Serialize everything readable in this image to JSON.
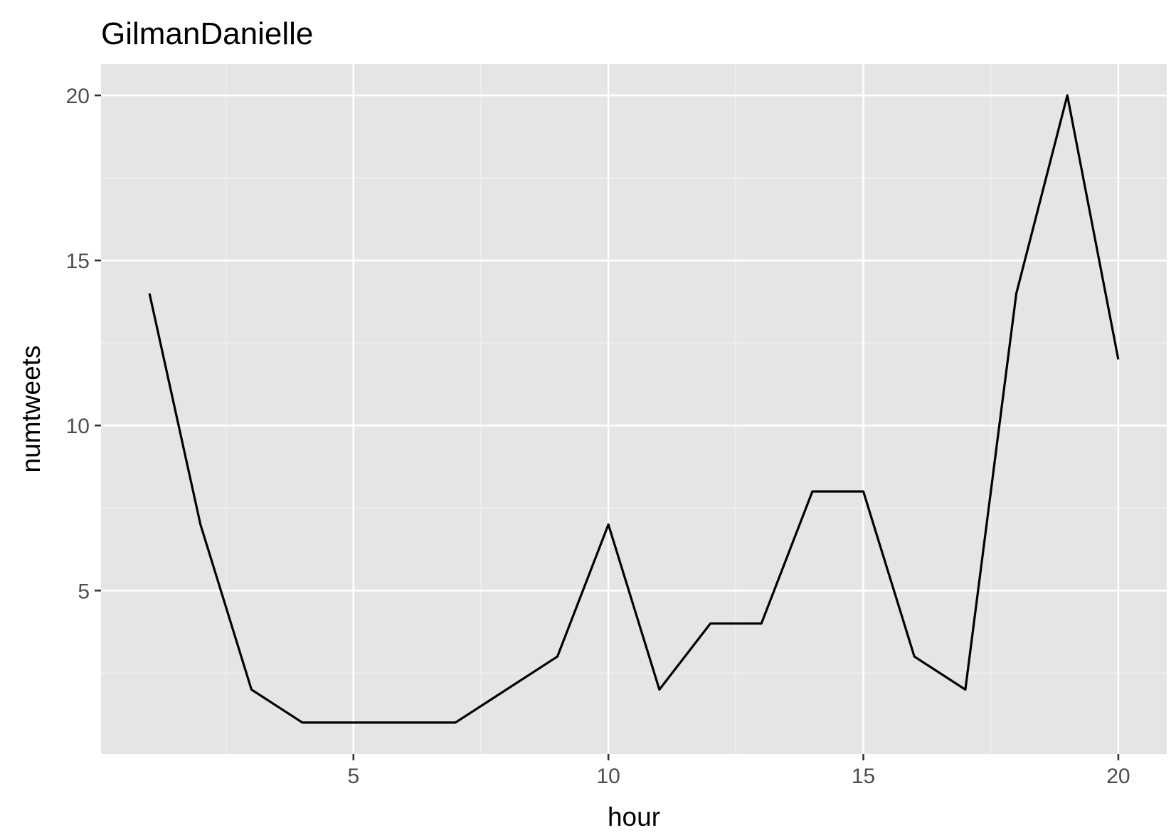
{
  "chart_data": {
    "type": "line",
    "title": "GilmanDanielle",
    "xlabel": "hour",
    "ylabel": "numtweets",
    "x": [
      1,
      2,
      3,
      4,
      5,
      6,
      7,
      8,
      9,
      10,
      11,
      12,
      13,
      14,
      15,
      16,
      17,
      18,
      19,
      20
    ],
    "series": [
      {
        "values": [
          14,
          7,
          2,
          1,
          1,
          1,
          1,
          2,
          3,
          7,
          2,
          4,
          4,
          8,
          8,
          3,
          2,
          14,
          20,
          12
        ]
      }
    ],
    "xlim": [
      0.05,
      20.95
    ],
    "ylim": [
      0.05,
      20.95
    ],
    "x_ticks": [
      5,
      10,
      15,
      20
    ],
    "x_tick_labels": [
      "5",
      "10",
      "15",
      "20"
    ],
    "y_ticks": [
      5,
      10,
      15,
      20
    ],
    "y_tick_labels": [
      "5",
      "10",
      "15",
      "20"
    ],
    "x_minor_ticks": [
      2.5,
      7.5,
      12.5,
      17.5
    ],
    "y_minor_ticks": [
      2.5,
      7.5,
      12.5,
      17.5
    ],
    "grid": true,
    "legend": "none",
    "colors": {
      "panel_background": "#e5e5e5",
      "grid_major": "#ffffff",
      "grid_minor": "#f2f2f2",
      "line": "#000000",
      "tick_label": "#4d4d4d",
      "text": "#000000"
    }
  }
}
